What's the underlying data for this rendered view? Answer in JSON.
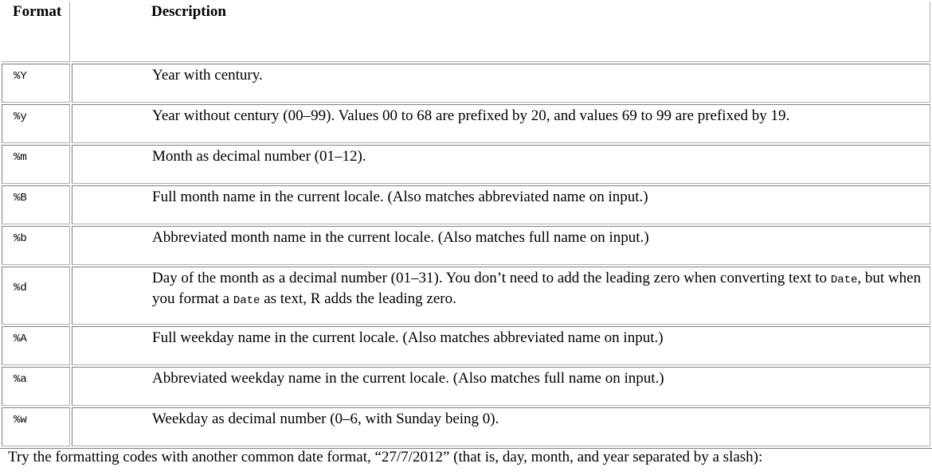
{
  "table": {
    "headers": {
      "format": "Format",
      "description": "Description"
    },
    "rows": [
      {
        "code": "%Y",
        "desc": "Year with century."
      },
      {
        "code": "%y",
        "desc": "Year without century (00–99). Values 00 to 68 are prefixed by 20, and values 69 to 99 are prefixed by 19."
      },
      {
        "code": "%m",
        "desc": "Month as decimal number (01–12)."
      },
      {
        "code": "%B",
        "desc": "Full month name in the current locale. (Also matches abbreviated name on input.)"
      },
      {
        "code": "%b",
        "desc": "Abbreviated month name in the current locale. (Also matches full name on input.)"
      },
      {
        "code": "%d",
        "desc_part1": "Day of the month as a decimal number (01–31). You don’t need to add the leading zero when converting text to ",
        "desc_code1": "Date",
        "desc_part2": ", but when you format a ",
        "desc_code2": "Date",
        "desc_part3": " as text, R adds the leading zero."
      },
      {
        "code": "%A",
        "desc": "Full weekday name in the current locale. (Also matches abbreviated name on input.)"
      },
      {
        "code": "%a",
        "desc": "Abbreviated weekday name in the current locale. (Also matches full name on input.)"
      },
      {
        "code": "%w",
        "desc": "Weekday as decimal number (0–6, with Sunday being 0)."
      }
    ]
  },
  "footer": "Try the formatting codes with another common date format, “27/7/2012” (that is, day, month, and year separated by a slash):"
}
